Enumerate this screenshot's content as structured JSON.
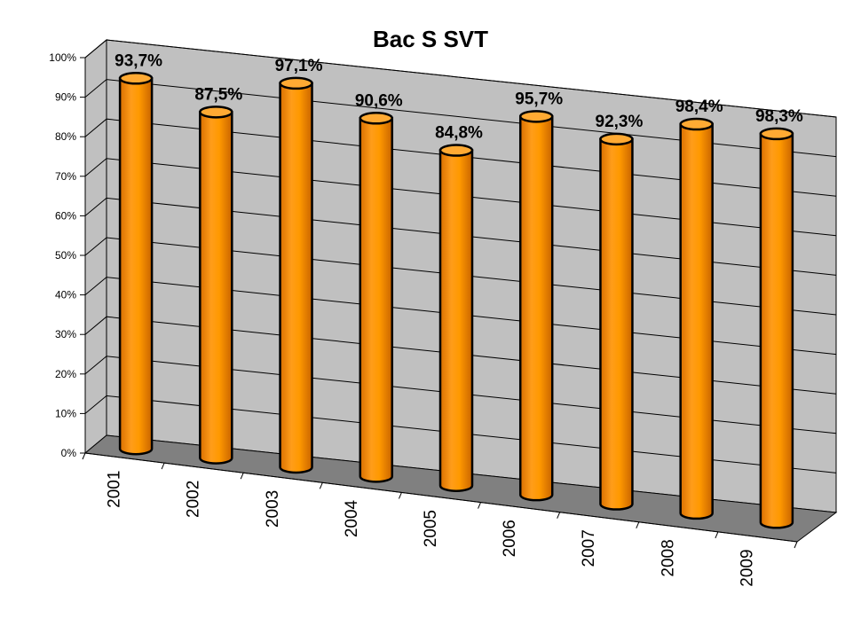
{
  "chart_data": {
    "type": "bar",
    "style": "3d-cylinder",
    "title": "Bac S SVT",
    "categories": [
      "2001",
      "2002",
      "2003",
      "2004",
      "2005",
      "2006",
      "2007",
      "2008",
      "2009"
    ],
    "values": [
      93.7,
      87.5,
      97.1,
      90.6,
      84.8,
      95.7,
      92.3,
      98.4,
      98.3
    ],
    "data_labels": [
      "93,7%",
      "87,5%",
      "97,1%",
      "90,6%",
      "84,8%",
      "95,7%",
      "92,3%",
      "98,4%",
      "98,3%"
    ],
    "ylim": [
      0,
      100
    ],
    "y_ticks": [
      "0%",
      "10%",
      "20%",
      "30%",
      "40%",
      "50%",
      "60%",
      "70%",
      "80%",
      "90%",
      "100%"
    ],
    "grid": true,
    "legend": "none",
    "colors": {
      "bar": "#ff9900",
      "bar_dark": "#cc6600",
      "wall": "#c0c0c0",
      "floor": "#808080",
      "outline": "#000000"
    }
  }
}
